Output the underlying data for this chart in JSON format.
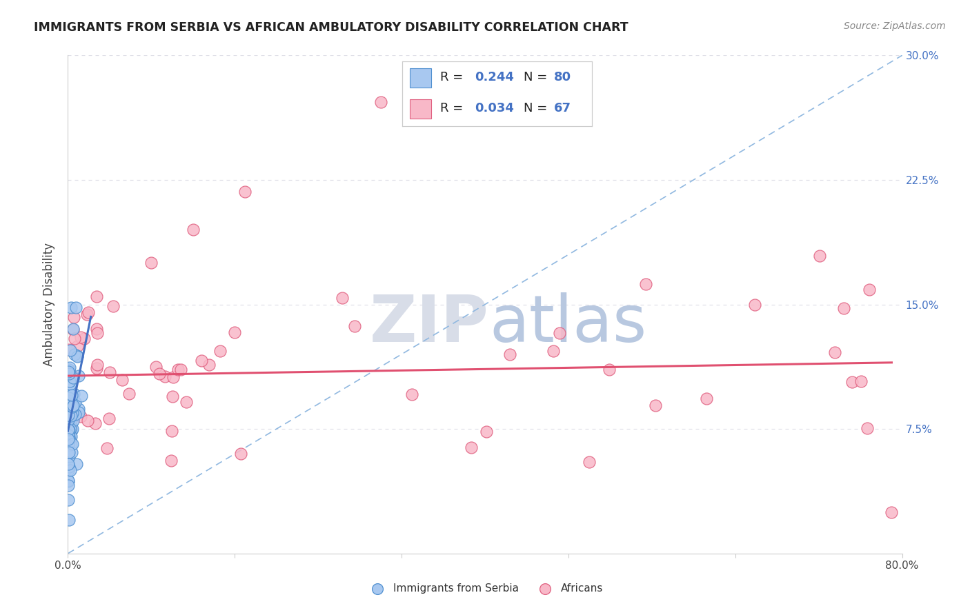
{
  "title": "IMMIGRANTS FROM SERBIA VS AFRICAN AMBULATORY DISABILITY CORRELATION CHART",
  "source": "Source: ZipAtlas.com",
  "ylabel": "Ambulatory Disability",
  "xmin": 0.0,
  "xmax": 0.8,
  "ymin": 0.0,
  "ymax": 0.3,
  "ytick_positions": [
    0.075,
    0.15,
    0.225,
    0.3
  ],
  "ytick_labels": [
    "7.5%",
    "15.0%",
    "22.5%",
    "30.0%"
  ],
  "xtick_positions": [
    0.0,
    0.16,
    0.32,
    0.48,
    0.64,
    0.8
  ],
  "xtick_labels": [
    "0.0%",
    "",
    "",
    "",
    "",
    "80.0%"
  ],
  "blue_face": "#a8c8f0",
  "blue_edge": "#5090d0",
  "pink_face": "#f8b8c8",
  "pink_edge": "#e06080",
  "line_blue_color": "#4472c4",
  "line_pink_color": "#e05070",
  "diag_color": "#90b8e0",
  "grid_color": "#e0e0e8",
  "watermark_zip_color": "#d8dde8",
  "watermark_atlas_color": "#b8c8e0",
  "legend_text_color": "#222222",
  "legend_val_color": "#4472c4",
  "right_tick_color": "#4472c4",
  "source_color": "#888888"
}
